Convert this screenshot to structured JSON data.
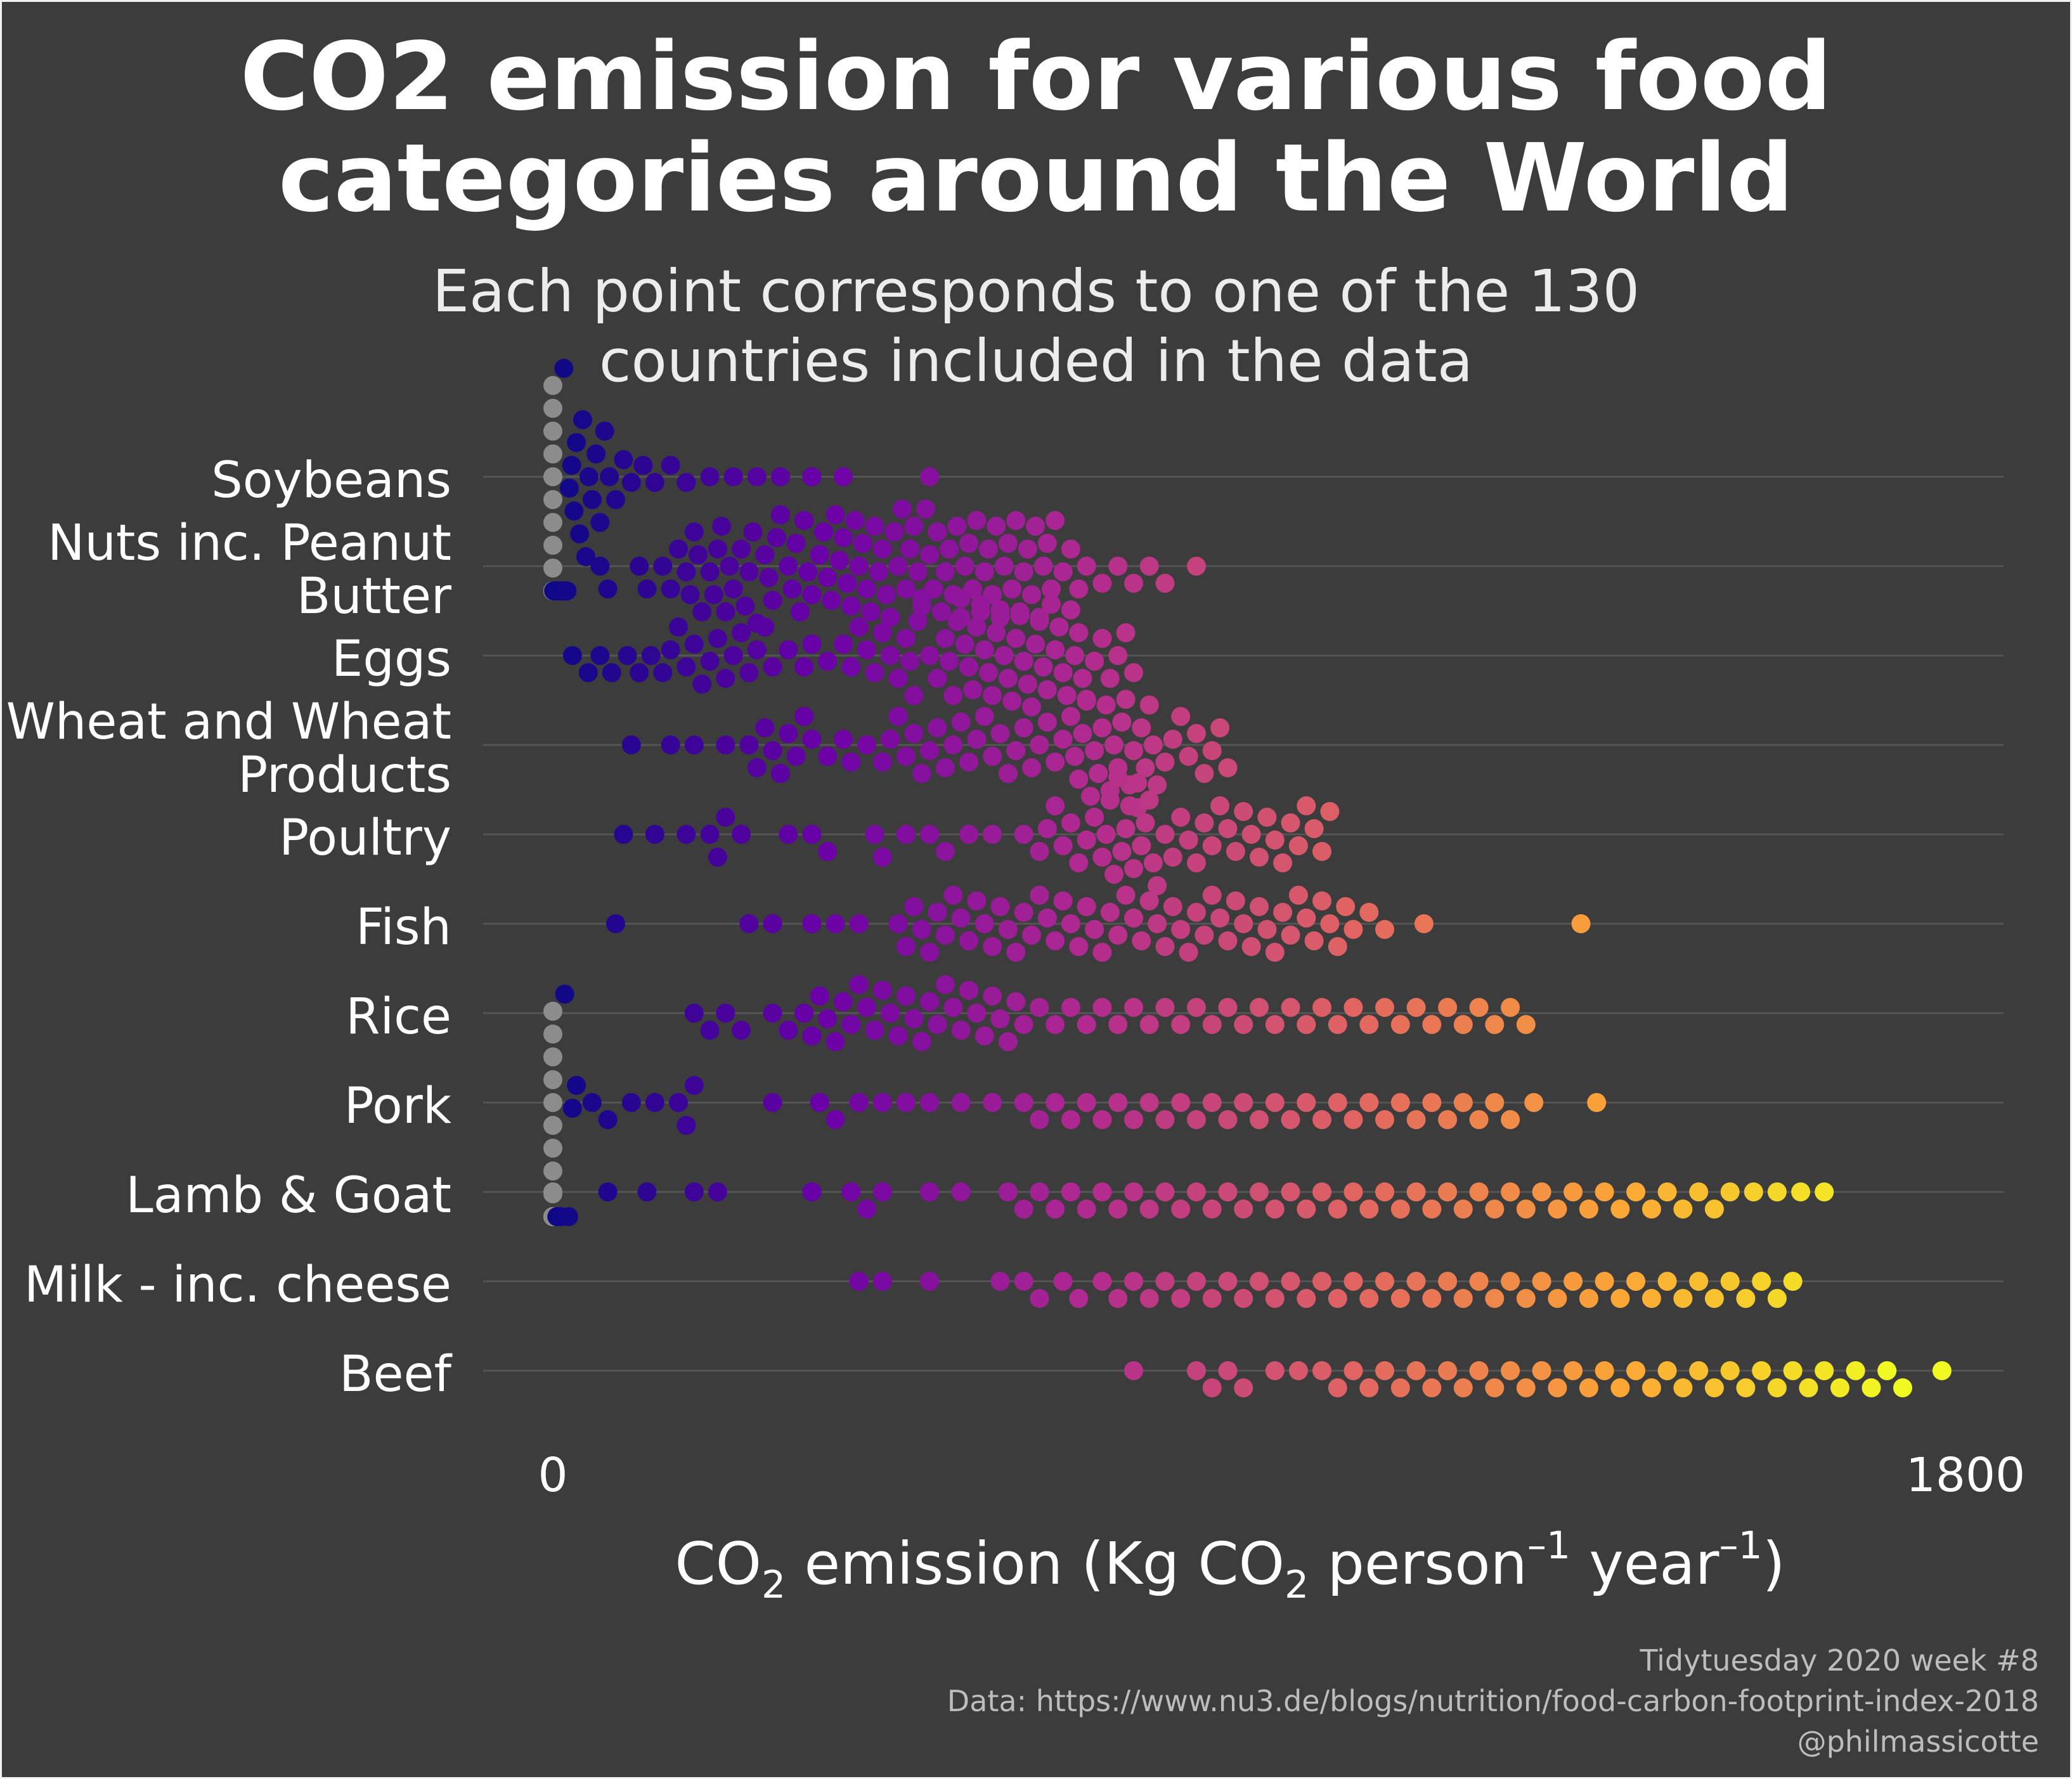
{
  "header": {
    "title_line1": "CO2 emission for various food",
    "title_line2": "categories around the World",
    "subtitle_line1": "Each point corresponds to one of the 130",
    "subtitle_line2": "countries included in the data"
  },
  "caption": {
    "line1": "Tidytuesday 2020 week #8",
    "line2": "Data: https://www.nu3.de/blogs/nutrition/food-carbon-footprint-index-2018",
    "line3": "@philmassicotte"
  },
  "colors": {
    "background": "#3c3c3c",
    "gridline": "#555555",
    "text": "#ffffff",
    "zero_point": "#8c8c8c",
    "palette": [
      "#0d0887",
      "#6a00a8",
      "#b12a90",
      "#e16462",
      "#fca636",
      "#f0f921"
    ]
  },
  "chart_data": {
    "type": "scatter",
    "subtype": "beeswarm",
    "orientation": "horizontal",
    "xlabel_parts": {
      "a": "CO",
      "a_sub": "2",
      "b": " emission (Kg CO",
      "b_sub": "2",
      "c": " person",
      "c_sup": "–1",
      "d": " year",
      "d_sup": "–1",
      "e": ")"
    },
    "xlim": [
      0,
      1800
    ],
    "xticks": [
      0,
      1800
    ],
    "xtick_labels": [
      "0",
      "1800"
    ],
    "color_scale": "plasma",
    "color_domain": [
      0,
      1700
    ],
    "grid": "horizontal",
    "legend": "none",
    "categories": [
      {
        "name": "Soybeans",
        "label_lines": [
          "Soybeans"
        ],
        "values": [
          0,
          0,
          0,
          0,
          0,
          0,
          0,
          0,
          0,
          0,
          0,
          0,
          0,
          0,
          0,
          0,
          0,
          0,
          0,
          0,
          0,
          0,
          0,
          0,
          0,
          0,
          0,
          0,
          0,
          0,
          0,
          0,
          0,
          0,
          0,
          0,
          0,
          0,
          0,
          0,
          0,
          0,
          0,
          0,
          0,
          0,
          0,
          0,
          0,
          0,
          0,
          0,
          0,
          0,
          0,
          0,
          0,
          0,
          0,
          0,
          0,
          0,
          0,
          0,
          0,
          0,
          0,
          0,
          0,
          0,
          0,
          0,
          0,
          0,
          0,
          0,
          0,
          0,
          0,
          0,
          0,
          0,
          0,
          0,
          0,
          0,
          0,
          1,
          1,
          2,
          2,
          3,
          4,
          5,
          6,
          7,
          8,
          9,
          10,
          12,
          14,
          16,
          18,
          21,
          24,
          27,
          30,
          34,
          38,
          42,
          46,
          50,
          55,
          60,
          66,
          72,
          80,
          90,
          100,
          115,
          130,
          150,
          170,
          200,
          230,
          260,
          290,
          330,
          370,
          480
        ]
      },
      {
        "name": "Nuts inc. Peanut Butter",
        "label_lines": [
          "Nuts inc. Peanut",
          "Butter"
        ],
        "values": [
          60,
          70,
          110,
          120,
          140,
          150,
          160,
          170,
          175,
          180,
          185,
          190,
          200,
          205,
          210,
          215,
          220,
          225,
          230,
          240,
          245,
          250,
          255,
          260,
          270,
          275,
          280,
          285,
          290,
          300,
          305,
          310,
          315,
          320,
          325,
          330,
          340,
          345,
          350,
          355,
          360,
          365,
          370,
          375,
          380,
          385,
          390,
          395,
          400,
          405,
          410,
          415,
          420,
          425,
          430,
          435,
          440,
          445,
          450,
          455,
          460,
          465,
          470,
          475,
          480,
          485,
          490,
          495,
          500,
          505,
          510,
          515,
          520,
          525,
          530,
          535,
          540,
          545,
          550,
          555,
          560,
          565,
          570,
          575,
          580,
          585,
          590,
          595,
          600,
          605,
          610,
          615,
          620,
          625,
          630,
          635,
          640,
          650,
          660,
          670,
          680,
          700,
          720,
          740,
          760,
          780,
          820
        ]
      },
      {
        "name": "Eggs",
        "label_lines": [
          "Eggs"
        ],
        "values": [
          25,
          45,
          60,
          75,
          95,
          110,
          125,
          140,
          150,
          160,
          170,
          180,
          190,
          200,
          210,
          220,
          230,
          240,
          250,
          260,
          270,
          280,
          300,
          320,
          330,
          350,
          370,
          380,
          390,
          400,
          410,
          420,
          430,
          440,
          450,
          455,
          460,
          465,
          470,
          480,
          490,
          500,
          505,
          510,
          515,
          520,
          525,
          530,
          535,
          540,
          545,
          550,
          555,
          560,
          565,
          570,
          575,
          580,
          585,
          590,
          595,
          600,
          605,
          610,
          615,
          620,
          625,
          630,
          635,
          640,
          645,
          650,
          655,
          660,
          665,
          670,
          675,
          680,
          690,
          700,
          710,
          720,
          730,
          740
        ]
      },
      {
        "name": "Wheat and Wheat Products",
        "label_lines": [
          "Wheat and Wheat",
          "Products"
        ],
        "values": [
          100,
          150,
          180,
          220,
          250,
          260,
          270,
          280,
          290,
          300,
          310,
          320,
          330,
          350,
          370,
          380,
          400,
          420,
          430,
          440,
          450,
          460,
          470,
          480,
          490,
          500,
          510,
          520,
          530,
          540,
          550,
          560,
          570,
          580,
          590,
          600,
          610,
          620,
          630,
          640,
          650,
          660,
          665,
          670,
          675,
          680,
          685,
          690,
          695,
          700,
          705,
          710,
          715,
          720,
          725,
          730,
          735,
          740,
          745,
          750,
          755,
          760,
          765,
          770,
          780,
          790,
          800,
          810,
          820,
          830,
          840,
          850,
          860
        ]
      },
      {
        "name": "Poultry",
        "label_lines": [
          "Poultry"
        ],
        "values": [
          90,
          130,
          170,
          200,
          210,
          220,
          240,
          300,
          330,
          350,
          410,
          420,
          450,
          480,
          500,
          530,
          560,
          600,
          620,
          630,
          640,
          650,
          660,
          670,
          680,
          690,
          700,
          705,
          710,
          715,
          720,
          725,
          730,
          735,
          740,
          745,
          750,
          755,
          760,
          765,
          770,
          780,
          790,
          800,
          810,
          820,
          830,
          840,
          850,
          860,
          870,
          880,
          890,
          900,
          910,
          920,
          930,
          940,
          950,
          960,
          970,
          980,
          990
        ]
      },
      {
        "name": "Fish",
        "label_lines": [
          "Fish"
        ],
        "values": [
          80,
          250,
          280,
          330,
          360,
          390,
          440,
          450,
          460,
          470,
          480,
          490,
          500,
          510,
          520,
          530,
          540,
          550,
          560,
          570,
          580,
          590,
          600,
          610,
          620,
          630,
          640,
          650,
          660,
          670,
          680,
          690,
          700,
          710,
          720,
          730,
          740,
          750,
          760,
          770,
          780,
          790,
          800,
          810,
          820,
          830,
          840,
          850,
          860,
          870,
          880,
          890,
          900,
          910,
          920,
          930,
          940,
          950,
          960,
          970,
          980,
          990,
          1000,
          1010,
          1020,
          1040,
          1060,
          1110,
          1310
        ]
      },
      {
        "name": "Rice",
        "label_lines": [
          "Rice"
        ],
        "values": [
          180,
          200,
          220,
          240,
          280,
          300,
          320,
          330,
          340,
          350,
          360,
          370,
          380,
          390,
          400,
          410,
          420,
          430,
          440,
          450,
          460,
          470,
          480,
          490,
          500,
          510,
          520,
          530,
          540,
          550,
          560,
          570,
          580,
          590,
          600,
          620,
          640,
          660,
          680,
          700,
          720,
          740,
          760,
          780,
          800,
          820,
          840,
          860,
          880,
          900,
          920,
          940,
          960,
          980,
          1000,
          1020,
          1040,
          1060,
          1080,
          1100,
          1120,
          1140,
          1160,
          1180,
          1200,
          1220,
          1240
        ]
      },
      {
        "name": "Pork",
        "label_lines": [
          "Pork"
        ],
        "values": [
          0,
          0,
          0,
          0,
          0,
          0,
          0,
          0,
          0,
          0,
          0,
          0,
          0,
          0,
          0,
          0,
          0,
          0,
          0,
          0,
          5,
          10,
          15,
          20,
          25,
          30,
          50,
          70,
          100,
          130,
          160,
          170,
          180,
          280,
          340,
          360,
          390,
          420,
          450,
          480,
          520,
          560,
          600,
          620,
          640,
          660,
          680,
          700,
          720,
          740,
          760,
          780,
          800,
          820,
          840,
          860,
          880,
          900,
          920,
          940,
          960,
          980,
          1000,
          1020,
          1040,
          1060,
          1080,
          1100,
          1120,
          1140,
          1160,
          1180,
          1200,
          1220,
          1250,
          1330
        ]
      },
      {
        "name": "Lamb & Goat",
        "label_lines": [
          "Lamb & Goat"
        ],
        "values": [
          0,
          70,
          120,
          180,
          210,
          330,
          380,
          400,
          420,
          480,
          520,
          580,
          600,
          620,
          640,
          660,
          680,
          700,
          720,
          740,
          760,
          780,
          800,
          820,
          840,
          860,
          880,
          900,
          920,
          940,
          960,
          980,
          1000,
          1020,
          1040,
          1060,
          1080,
          1100,
          1120,
          1140,
          1160,
          1180,
          1200,
          1220,
          1240,
          1260,
          1280,
          1300,
          1320,
          1340,
          1360,
          1380,
          1400,
          1420,
          1440,
          1460,
          1480,
          1500,
          1530,
          1560,
          1590,
          1620
        ]
      },
      {
        "name": "Milk - inc. cheese",
        "label_lines": [
          "Milk - inc. cheese"
        ],
        "values": [
          390,
          420,
          480,
          570,
          600,
          620,
          650,
          670,
          700,
          720,
          740,
          760,
          780,
          800,
          820,
          840,
          860,
          880,
          900,
          920,
          940,
          960,
          980,
          1000,
          1020,
          1040,
          1060,
          1080,
          1100,
          1120,
          1140,
          1160,
          1180,
          1200,
          1220,
          1240,
          1260,
          1280,
          1300,
          1320,
          1340,
          1360,
          1380,
          1400,
          1420,
          1440,
          1460,
          1480,
          1500,
          1520,
          1540,
          1560,
          1580
        ]
      },
      {
        "name": "Beef",
        "label_lines": [
          "Beef"
        ],
        "values": [
          740,
          820,
          840,
          860,
          880,
          920,
          950,
          980,
          1000,
          1020,
          1040,
          1060,
          1080,
          1100,
          1120,
          1140,
          1160,
          1180,
          1200,
          1220,
          1240,
          1260,
          1280,
          1300,
          1320,
          1340,
          1360,
          1380,
          1400,
          1420,
          1440,
          1460,
          1480,
          1500,
          1520,
          1540,
          1560,
          1580,
          1600,
          1620,
          1640,
          1660,
          1680,
          1700,
          1720,
          1770
        ]
      }
    ]
  }
}
